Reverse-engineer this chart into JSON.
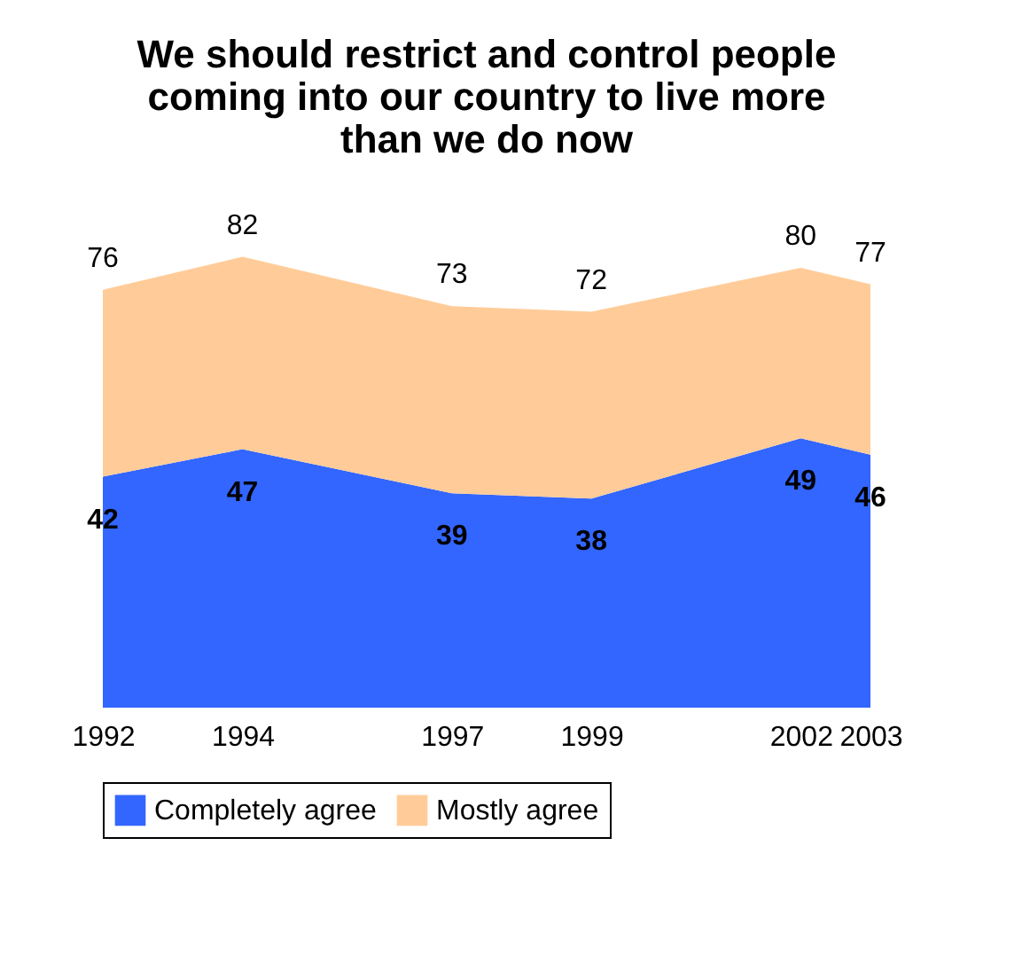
{
  "chart_data": {
    "type": "area",
    "stacked": true,
    "title": "We should restrict and control people coming into our country to live more than we do now",
    "x": [
      "1992",
      "1994",
      "1997",
      "1999",
      "2002",
      "2003"
    ],
    "xlim": [
      "1992",
      "2003"
    ],
    "xticks": [
      "1992",
      "1994",
      "1997",
      "1999",
      "2002",
      "2003"
    ],
    "series": [
      {
        "name": "Completely agree",
        "color": "#3366ff",
        "values": [
          42,
          47,
          39,
          38,
          49,
          46
        ],
        "value_labels": [
          "42",
          "47",
          "39",
          "38",
          "49",
          "46"
        ]
      },
      {
        "name": "Mostly agree",
        "color": "#ffcc99",
        "values": [
          34,
          35,
          34,
          34,
          31,
          31
        ]
      }
    ],
    "totals": [
      "76",
      "82",
      "73",
      "72",
      "80",
      "77"
    ],
    "grid": false,
    "legend": "bottom",
    "tick_labels": "x"
  }
}
